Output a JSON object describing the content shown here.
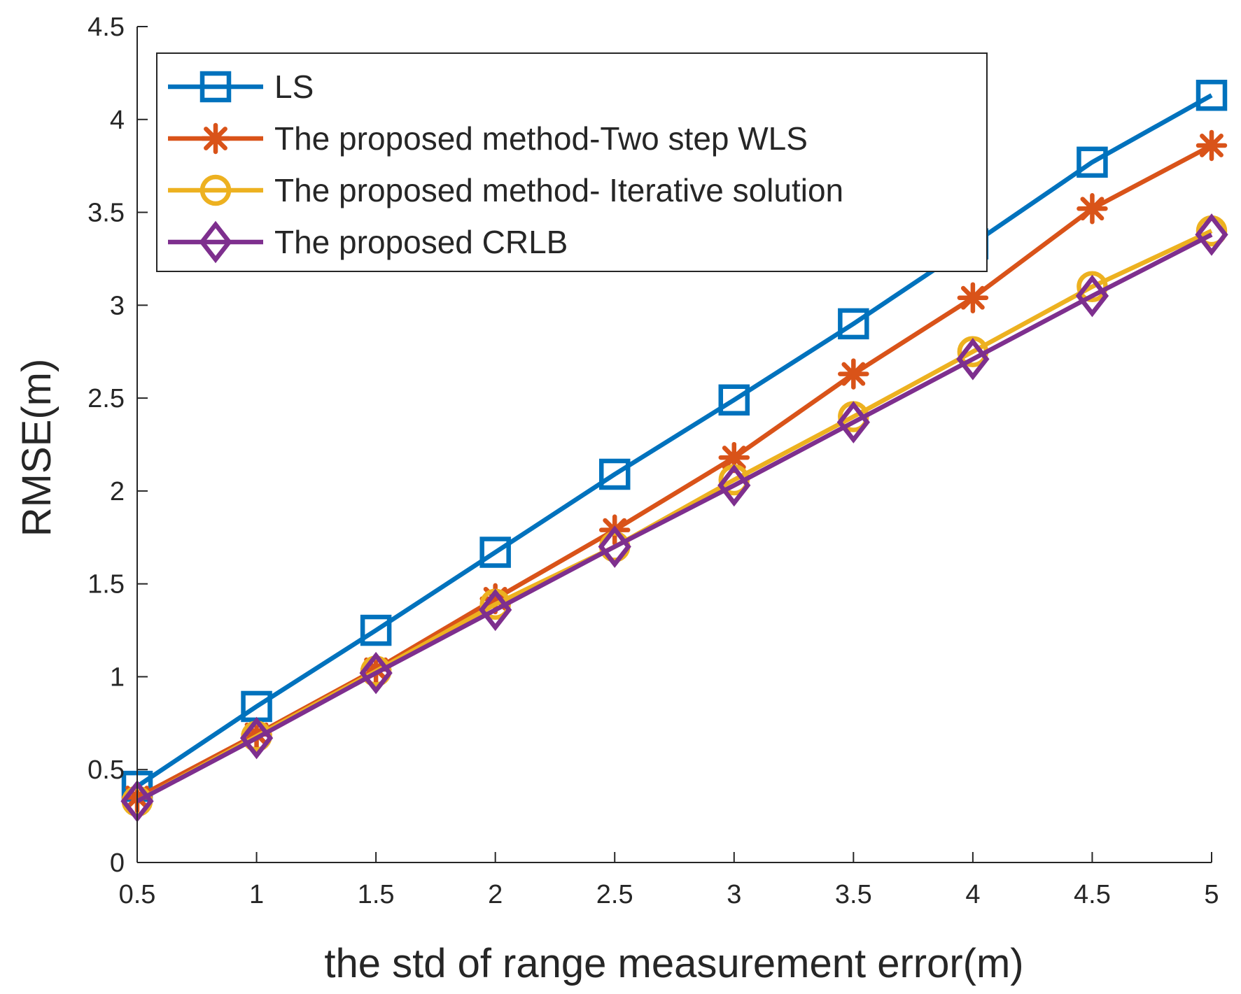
{
  "chart_data": {
    "type": "line",
    "title": "",
    "xlabel": "the std of range measurement error(m)",
    "ylabel": "RMSE(m)",
    "xlim": [
      0.5,
      5
    ],
    "ylim": [
      0,
      4.5
    ],
    "grid": false,
    "legend_position": "top-left",
    "x": [
      0.5,
      1,
      1.5,
      2,
      2.5,
      3,
      3.5,
      4,
      4.5,
      5
    ],
    "xticks": [
      0.5,
      1,
      1.5,
      2,
      2.5,
      3,
      3.5,
      4,
      4.5,
      5
    ],
    "xtick_labels": [
      "0.5",
      "1",
      "1.5",
      "2",
      "2.5",
      "3",
      "3.5",
      "4",
      "4.5",
      "5"
    ],
    "yticks": [
      0,
      0.5,
      1,
      1.5,
      2,
      2.5,
      3,
      3.5,
      4,
      4.5
    ],
    "ytick_labels": [
      "0",
      "0.5",
      "1",
      "1.5",
      "2",
      "2.5",
      "3",
      "3.5",
      "4",
      "4.5"
    ],
    "series": [
      {
        "name": "LS",
        "color": "#0072BD",
        "marker": "square",
        "values": [
          0.41,
          0.84,
          1.25,
          1.67,
          2.09,
          2.49,
          2.9,
          3.33,
          3.77,
          4.13
        ]
      },
      {
        "name": "The proposed method-Two step WLS",
        "color": "#D95319",
        "marker": "asterisk",
        "values": [
          0.35,
          0.69,
          1.04,
          1.42,
          1.79,
          2.18,
          2.63,
          3.04,
          3.52,
          3.86
        ]
      },
      {
        "name": "The proposed method- Iterative solution",
        "color": "#EDB120",
        "marker": "circle",
        "values": [
          0.33,
          0.68,
          1.03,
          1.39,
          1.7,
          2.06,
          2.4,
          2.75,
          3.1,
          3.4
        ]
      },
      {
        "name": "The proposed CRLB",
        "color": "#7E2F8E",
        "marker": "diamond",
        "values": [
          0.33,
          0.67,
          1.02,
          1.36,
          1.7,
          2.03,
          2.37,
          2.71,
          3.05,
          3.38
        ]
      }
    ]
  }
}
